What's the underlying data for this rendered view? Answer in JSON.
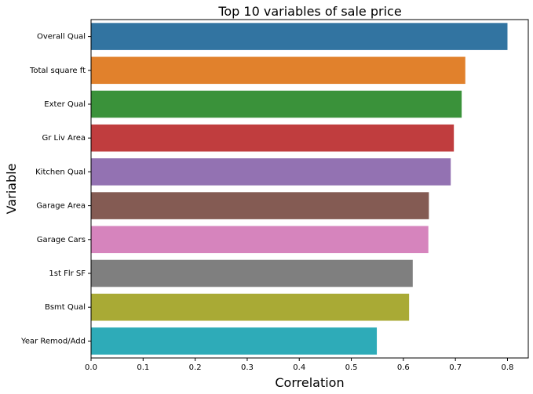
{
  "chart_data": {
    "type": "bar",
    "orientation": "horizontal",
    "title": "Top 10 variables of sale price",
    "xlabel": "Correlation",
    "ylabel": "Variable",
    "xlim": [
      0,
      0.84
    ],
    "x_ticks": [
      "0.0",
      "0.1",
      "0.2",
      "0.3",
      "0.4",
      "0.5",
      "0.6",
      "0.7",
      "0.8"
    ],
    "grid": false,
    "categories": [
      "Overall Qual",
      "Total square ft",
      "Exter Qual",
      "Gr Liv Area",
      "Kitchen Qual",
      "Garage Area",
      "Garage Cars",
      "1st Flr SF",
      "Bsmt Qual",
      "Year Remod/Add"
    ],
    "values": [
      0.8,
      0.719,
      0.712,
      0.697,
      0.691,
      0.649,
      0.648,
      0.618,
      0.611,
      0.549
    ],
    "colors": [
      "#3274a1",
      "#e1812c",
      "#3a923a",
      "#c03d3e",
      "#9372b2",
      "#845b53",
      "#d684bd",
      "#7f7f7f",
      "#a9aa35",
      "#2eabb8"
    ]
  }
}
